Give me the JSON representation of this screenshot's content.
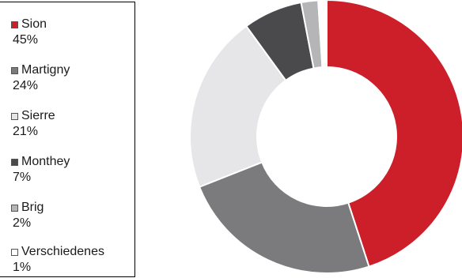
{
  "chart_data": {
    "type": "pie",
    "style": "donut",
    "legend_position": "left",
    "categories": [
      "Sion",
      "Martigny",
      "Sierre",
      "Monthey",
      "Brig",
      "Verschiedenes"
    ],
    "values": [
      45,
      24,
      21,
      7,
      2,
      1
    ],
    "labels": [
      "45%",
      "24%",
      "21%",
      "7%",
      "2%",
      "1%"
    ],
    "colors": [
      "#cc1f2a",
      "#7b7b7e",
      "#e6e6e8",
      "#4a4a4c",
      "#b5b5b8",
      "#ffffff"
    ]
  }
}
